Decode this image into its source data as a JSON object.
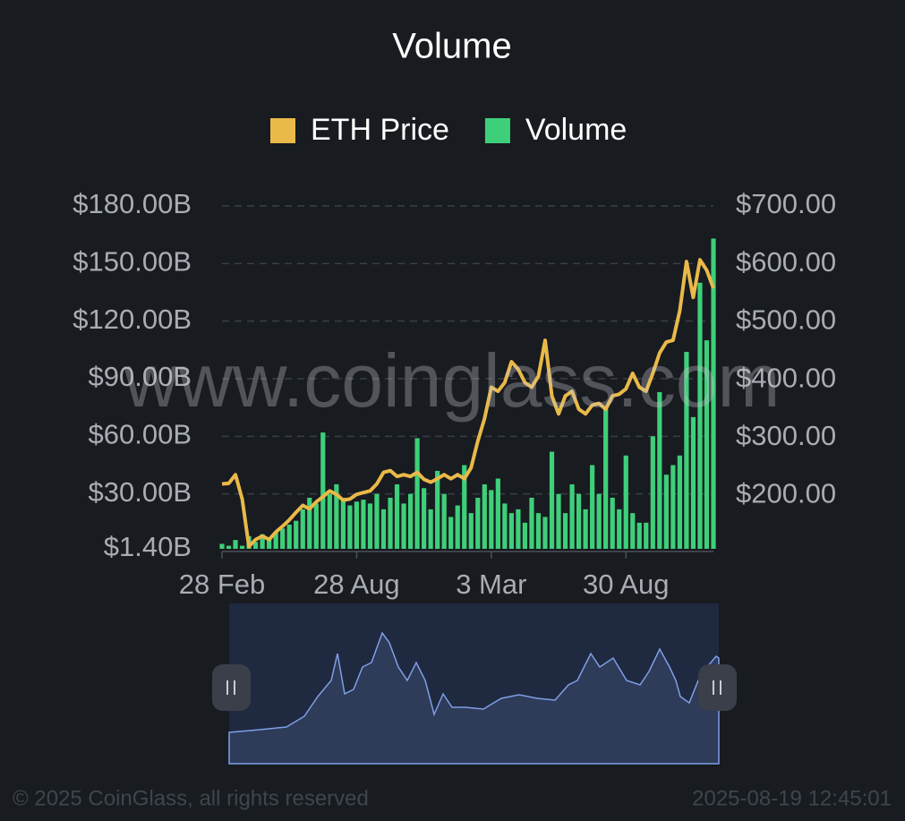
{
  "chart_data": {
    "type": "combo",
    "title": "Volume",
    "categories": [
      "28 Feb",
      null,
      null,
      null,
      null,
      null,
      null,
      null,
      null,
      null,
      null,
      null,
      null,
      null,
      null,
      null,
      null,
      null,
      null,
      null,
      "28 Aug",
      null,
      null,
      null,
      null,
      null,
      null,
      null,
      null,
      null,
      null,
      null,
      null,
      null,
      null,
      null,
      null,
      null,
      null,
      null,
      "3 Mar",
      null,
      null,
      null,
      null,
      null,
      null,
      null,
      null,
      null,
      null,
      null,
      null,
      null,
      null,
      null,
      null,
      null,
      null,
      null,
      "30 Aug",
      null,
      null,
      null,
      null,
      null,
      null,
      null,
      null,
      null,
      null,
      null,
      null,
      null
    ],
    "series": [
      {
        "name": "ETH Price",
        "type": "line",
        "axis": "y2",
        "color": "#e9b949",
        "values": [
          220,
          221,
          236,
          194,
          112,
          124,
          130,
          124,
          137,
          147,
          158,
          171,
          183,
          177,
          189,
          198,
          208,
          202,
          192,
          194,
          202,
          205,
          208,
          220,
          240,
          243,
          233,
          236,
          233,
          240,
          228,
          223,
          229,
          236,
          229,
          236,
          229,
          248,
          294,
          333,
          387,
          380,
          395,
          431,
          418,
          395,
          387,
          406,
          468,
          372,
          341,
          372,
          380,
          349,
          341,
          356,
          359,
          349,
          372,
          375,
          384,
          411,
          387,
          380,
          411,
          446,
          465,
          468,
          519,
          604,
          542,
          607,
          589,
          558
        ]
      },
      {
        "name": "Volume",
        "type": "bar",
        "color": "#3ecf7a",
        "values": [
          4,
          3,
          6,
          3,
          8,
          5,
          9,
          7,
          10,
          12,
          14,
          16,
          22,
          28,
          25,
          62,
          30,
          35,
          28,
          24,
          26,
          27,
          25,
          30,
          22,
          28,
          35,
          25,
          30,
          59,
          33,
          22,
          42,
          30,
          18,
          24,
          45,
          20,
          28,
          35,
          32,
          38,
          25,
          20,
          22,
          15,
          28,
          20,
          18,
          52,
          30,
          20,
          35,
          30,
          22,
          45,
          30,
          75,
          28,
          22,
          50,
          20,
          15,
          15,
          60,
          83,
          40,
          45,
          50,
          104,
          70,
          140,
          110,
          163
        ]
      }
    ],
    "ylim": [
      1.4,
      180
    ],
    "yticks": [
      {
        "value": 1.4,
        "label": "$1.40B"
      },
      {
        "value": 30,
        "label": "$30.00B"
      },
      {
        "value": 60,
        "label": "$60.00B"
      },
      {
        "value": 90,
        "label": "$90.00B"
      },
      {
        "value": 120,
        "label": "$120.00B"
      },
      {
        "value": 150,
        "label": "$150.00B"
      },
      {
        "value": 180,
        "label": "$180.00B"
      }
    ],
    "y2lim": [
      108,
      700
    ],
    "y2ticks": [
      {
        "value": 200,
        "label": "$200.00"
      },
      {
        "value": 300,
        "label": "$300.00"
      },
      {
        "value": 400,
        "label": "$400.00"
      },
      {
        "value": 500,
        "label": "$500.00"
      },
      {
        "value": 600,
        "label": "$600.00"
      },
      {
        "value": 700,
        "label": "$700.00"
      }
    ],
    "grid": true,
    "legend": "top",
    "watermark": "www.coinglass.com"
  },
  "footer": {
    "copyright": "© 2025 CoinGlass, all rights reserved",
    "timestamp": "2025-08-19 12:45:01"
  }
}
